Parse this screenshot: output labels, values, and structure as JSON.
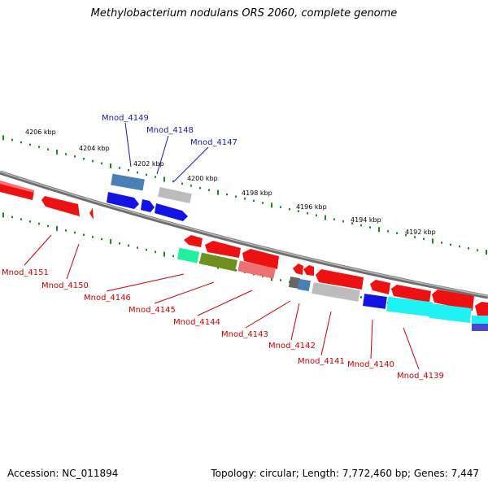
{
  "title": "Methylobacterium nodulans ORS 2060, complete genome",
  "footer": {
    "accession": "Accession: NC_011894",
    "summary": "Topology: circular; Length: 7,772,460 bp; Genes: 7,447"
  },
  "kbp_labels": [
    "4206 kbp",
    "4204 kbp",
    "4202 kbp",
    "4200 kbp",
    "4198 kbp",
    "4196 kbp",
    "4194 kbp",
    "4192 kbp"
  ],
  "forward_genes": [
    "Mnod_4149",
    "Mnod_4148",
    "Mnod_4147"
  ],
  "reverse_genes": [
    "Mnod_4151",
    "Mnod_4150",
    "Mnod_4146",
    "Mnod_4145",
    "Mnod_4144",
    "Mnod_4143",
    "Mnod_4142",
    "Mnod_4141",
    "Mnod_4140",
    "Mnod_4139"
  ],
  "colors": {
    "forward_label": "#1a1aa8",
    "reverse_label": "#cc0000",
    "tick": "#1a8a1a",
    "backbone": "#7a7a7a"
  }
}
